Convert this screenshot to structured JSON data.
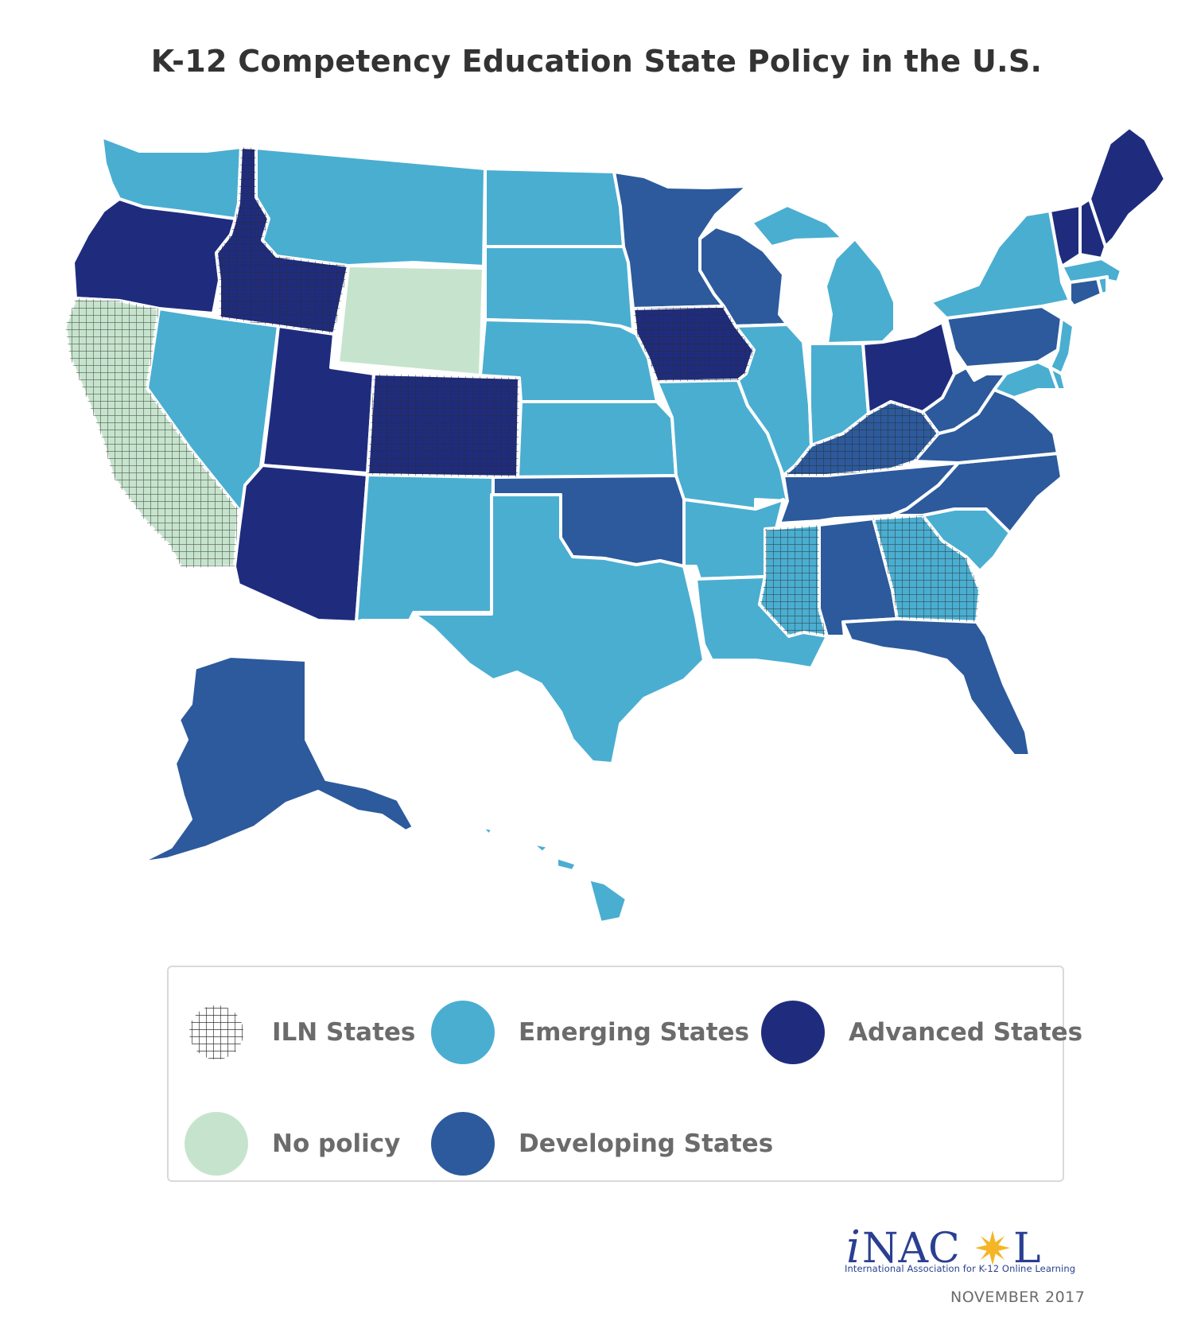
{
  "title": "K-12 Competency Education State Policy in the U.S.",
  "colors": {
    "emerging": "#4aaed1",
    "developing": "#2c5a9c",
    "advanced": "#1f2c7e",
    "no_policy": "#c6e4cd",
    "iln_grid": "#2a2a2a",
    "brand": "#2a3f92",
    "sun": "#f4b626"
  },
  "legend": [
    {
      "label": "ILN States",
      "key": "iln"
    },
    {
      "label": "Emerging States",
      "key": "emerging"
    },
    {
      "label": "Advanced States",
      "key": "advanced"
    },
    {
      "label": "No policy",
      "key": "no_policy"
    },
    {
      "label": "Developing States",
      "key": "developing"
    }
  ],
  "states": {
    "WA": {
      "status": "emerging",
      "iln": false
    },
    "OR": {
      "status": "advanced",
      "iln": false
    },
    "CA": {
      "status": "no_policy",
      "iln": true
    },
    "ID": {
      "status": "advanced",
      "iln": true
    },
    "NV": {
      "status": "emerging",
      "iln": false
    },
    "MT": {
      "status": "emerging",
      "iln": false
    },
    "WY": {
      "status": "no_policy",
      "iln": false
    },
    "UT": {
      "status": "advanced",
      "iln": false
    },
    "AZ": {
      "status": "advanced",
      "iln": false
    },
    "CO": {
      "status": "advanced",
      "iln": true
    },
    "NM": {
      "status": "emerging",
      "iln": false
    },
    "ND": {
      "status": "emerging",
      "iln": false
    },
    "SD": {
      "status": "emerging",
      "iln": false
    },
    "NE": {
      "status": "emerging",
      "iln": false
    },
    "KS": {
      "status": "emerging",
      "iln": false
    },
    "OK": {
      "status": "developing",
      "iln": false
    },
    "TX": {
      "status": "emerging",
      "iln": false
    },
    "MN": {
      "status": "developing",
      "iln": false
    },
    "IA": {
      "status": "advanced",
      "iln": true
    },
    "MO": {
      "status": "emerging",
      "iln": false
    },
    "AR": {
      "status": "emerging",
      "iln": false
    },
    "LA": {
      "status": "emerging",
      "iln": false
    },
    "WI": {
      "status": "developing",
      "iln": false
    },
    "IL": {
      "status": "emerging",
      "iln": false
    },
    "MI": {
      "status": "emerging",
      "iln": false
    },
    "IN": {
      "status": "emerging",
      "iln": false
    },
    "OH": {
      "status": "advanced",
      "iln": false
    },
    "KY": {
      "status": "developing",
      "iln": true
    },
    "TN": {
      "status": "developing",
      "iln": false
    },
    "MS": {
      "status": "emerging",
      "iln": true
    },
    "AL": {
      "status": "developing",
      "iln": false
    },
    "GA": {
      "status": "emerging",
      "iln": true
    },
    "FL": {
      "status": "developing",
      "iln": false
    },
    "SC": {
      "status": "emerging",
      "iln": false
    },
    "NC": {
      "status": "developing",
      "iln": false
    },
    "VA": {
      "status": "developing",
      "iln": false
    },
    "WV": {
      "status": "developing",
      "iln": false
    },
    "PA": {
      "status": "developing",
      "iln": false
    },
    "NY": {
      "status": "emerging",
      "iln": false
    },
    "NJ": {
      "status": "emerging",
      "iln": false
    },
    "MD": {
      "status": "emerging",
      "iln": false
    },
    "DE": {
      "status": "emerging",
      "iln": false
    },
    "CT": {
      "status": "developing",
      "iln": false
    },
    "MA": {
      "status": "emerging",
      "iln": false
    },
    "RI": {
      "status": "emerging",
      "iln": false
    },
    "VT": {
      "status": "advanced",
      "iln": false
    },
    "NH": {
      "status": "advanced",
      "iln": false
    },
    "ME": {
      "status": "advanced",
      "iln": false
    },
    "AK": {
      "status": "developing",
      "iln": false
    },
    "HI": {
      "status": "emerging",
      "iln": false
    }
  },
  "logo": {
    "name": "iNACOL",
    "subtitle": "International Association for K-12 Online Learning"
  },
  "date": "NOVEMBER 2017"
}
